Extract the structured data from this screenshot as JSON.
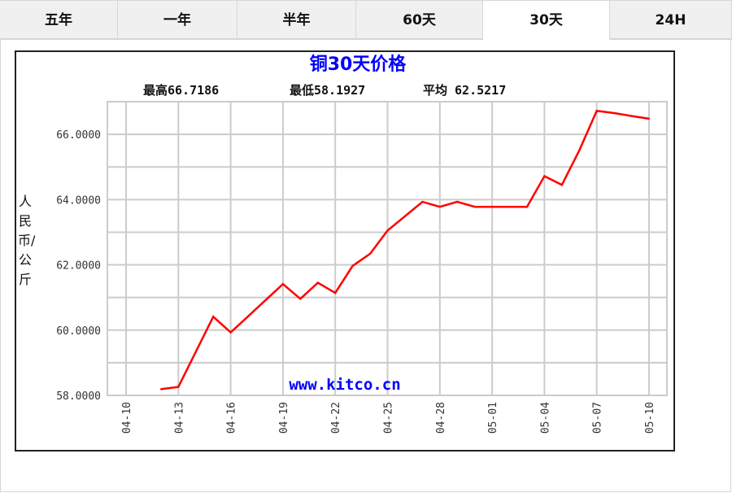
{
  "tabs": [
    {
      "label": "五年",
      "active": false
    },
    {
      "label": "一年",
      "active": false
    },
    {
      "label": "半年",
      "active": false
    },
    {
      "label": "60天",
      "active": false
    },
    {
      "label": "30天",
      "active": true
    },
    {
      "label": "24H",
      "active": false
    }
  ],
  "chart_data": {
    "type": "line",
    "title": "铜30天价格",
    "stats": {
      "high": "最高66.7186",
      "low": "最低58.1927",
      "avg": "平均 62.5217"
    },
    "ylabel": "人民币/公斤",
    "watermark": "www.kitco.cn",
    "ylim": [
      58,
      67
    ],
    "yticks": [
      "58.0000",
      "60.0000",
      "62.0000",
      "64.0000",
      "66.0000"
    ],
    "xticks": [
      "04-10",
      "04-13",
      "04-16",
      "04-19",
      "04-22",
      "04-25",
      "04-28",
      "05-01",
      "05-04",
      "05-07",
      "05-10"
    ],
    "xrange": [
      "04-10",
      "05-10"
    ],
    "grid": true,
    "line_color": "#ff0000",
    "x": [
      "04-12",
      "04-13",
      "04-15",
      "04-16",
      "04-17",
      "04-18",
      "04-19",
      "04-20",
      "04-21",
      "04-22",
      "04-23",
      "04-24",
      "04-25",
      "04-26",
      "04-27",
      "04-28",
      "04-29",
      "04-30",
      "05-01",
      "05-02",
      "05-03",
      "05-04",
      "05-05",
      "05-06",
      "05-07",
      "05-08",
      "05-09",
      "05-10"
    ],
    "values": [
      58.19,
      58.26,
      60.41,
      59.93,
      60.42,
      60.92,
      61.41,
      60.96,
      61.45,
      61.14,
      61.97,
      62.34,
      63.05,
      63.49,
      63.93,
      63.78,
      63.93,
      63.78,
      63.78,
      63.78,
      63.78,
      64.72,
      64.45,
      65.51,
      66.72,
      66.65,
      66.56,
      66.48
    ]
  }
}
